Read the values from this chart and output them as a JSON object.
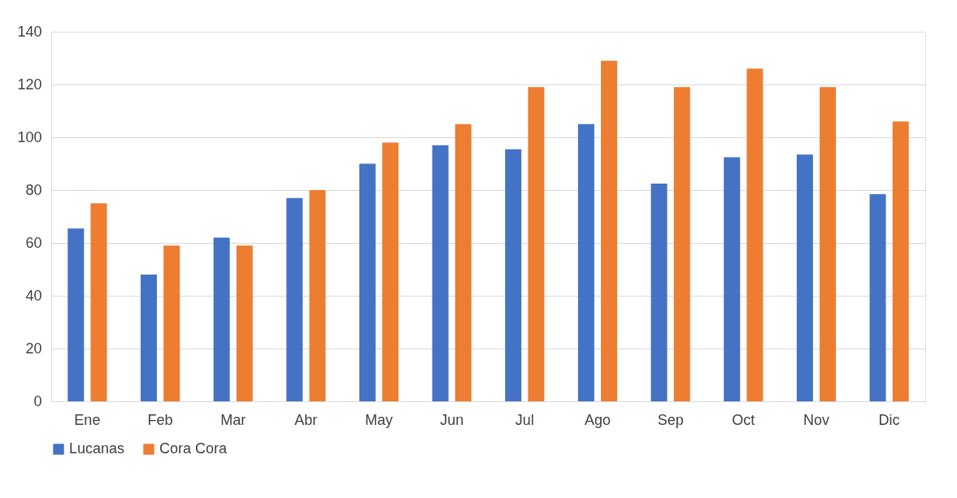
{
  "chart_data": {
    "type": "bar",
    "categories": [
      "Ene",
      "Feb",
      "Mar",
      "Abr",
      "May",
      "Jun",
      "Jul",
      "Ago",
      "Sep",
      "Oct",
      "Nov",
      "Dic"
    ],
    "series": [
      {
        "name": "Lucanas",
        "color": "#4472c4",
        "values": [
          65.5,
          48,
          62,
          77,
          90,
          97,
          95.5,
          105,
          82.5,
          92.5,
          93.5,
          78.5
        ]
      },
      {
        "name": "Cora Cora",
        "color": "#ed7d31",
        "values": [
          75,
          59,
          59,
          80,
          98,
          105,
          119,
          129,
          119,
          126,
          119,
          106
        ]
      }
    ],
    "ylim": [
      0,
      140
    ],
    "yticks": [
      0,
      20,
      40,
      60,
      80,
      100,
      120,
      140
    ],
    "grid": "y",
    "legend": "bottom"
  }
}
